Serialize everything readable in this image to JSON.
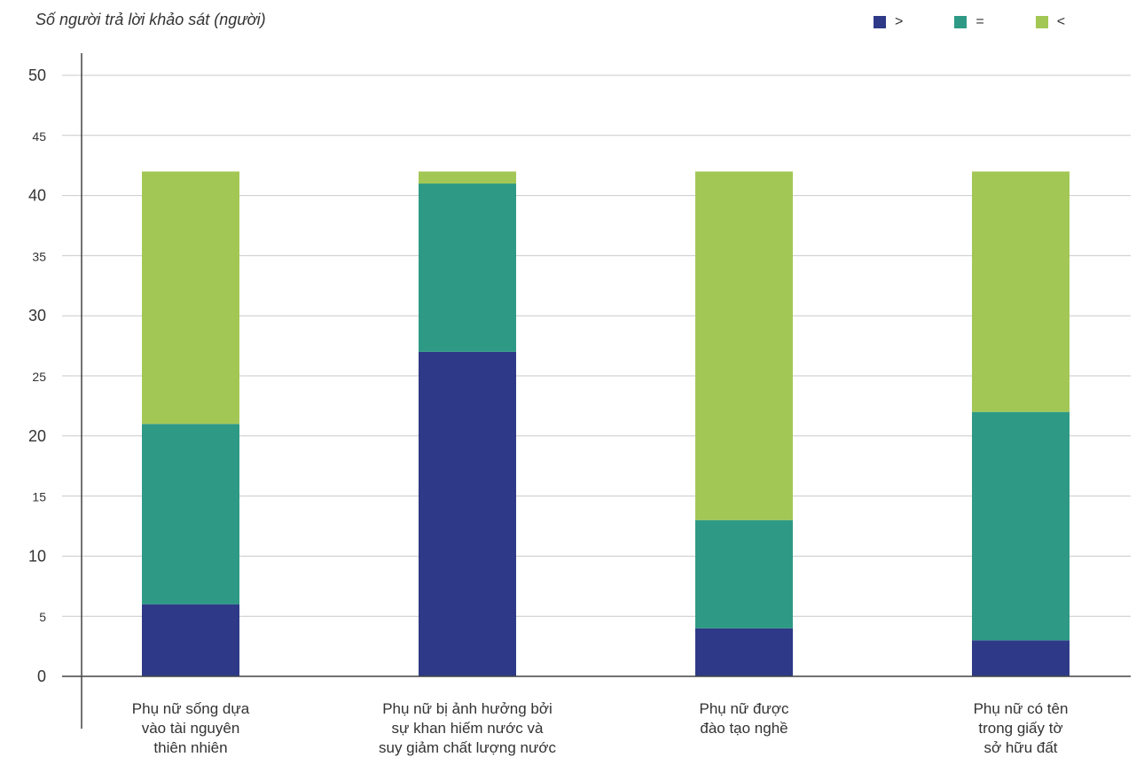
{
  "chart_data": {
    "type": "bar",
    "stacked": true,
    "title": "Số người trả lời khảo sát (người)",
    "xlabel": "",
    "ylabel": "",
    "ylim": [
      0,
      50
    ],
    "yticks": [
      0,
      5,
      10,
      15,
      20,
      25,
      30,
      35,
      40,
      45,
      50
    ],
    "grid": true,
    "legend_position": "top-right",
    "categories": [
      [
        "Phụ nữ sống dựa",
        "vào tài nguyên",
        "thiên nhiên"
      ],
      [
        "Phụ nữ bị ảnh hưởng bởi",
        "sự khan hiếm nước và",
        "suy giảm chất lượng nước"
      ],
      [
        "Phụ nữ được",
        "đào tạo nghề"
      ],
      [
        "Phụ nữ có tên",
        "trong giấy tờ",
        "sở hữu đất"
      ]
    ],
    "series": [
      {
        "name": ">",
        "color": "#2e3a87",
        "values": [
          6,
          27,
          4,
          3
        ]
      },
      {
        "name": "=",
        "color": "#2e9a85",
        "values": [
          15,
          14,
          9,
          19
        ]
      },
      {
        "name": "<",
        "color": "#a3c755",
        "values": [
          21,
          1,
          29,
          20
        ]
      }
    ]
  }
}
